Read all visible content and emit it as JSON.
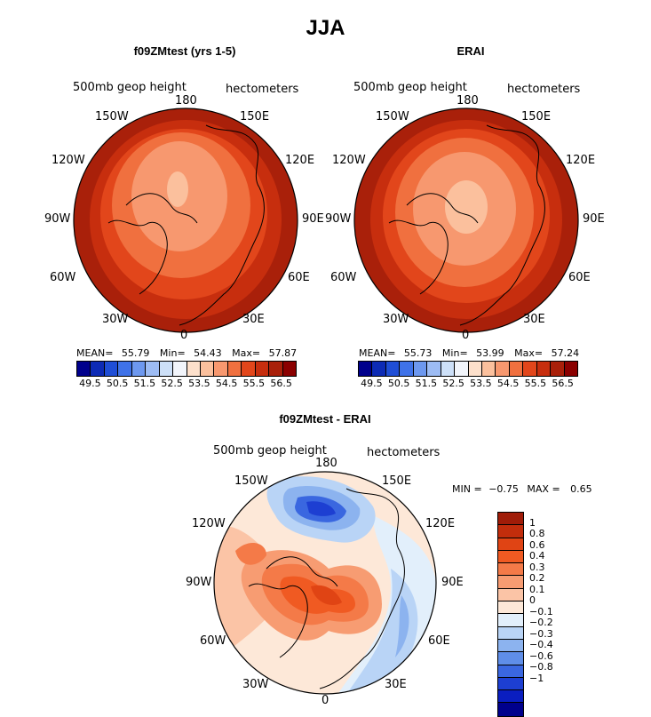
{
  "title": "JJA",
  "panels": [
    {
      "title": "f09ZMtest (yrs 1-5)",
      "variable": "500mb geop height",
      "units": "hectometers",
      "stats": {
        "mean_label": "MEAN=",
        "mean": "55.79",
        "min_label": "Min=",
        "min": "54.43",
        "max_label": "Max=",
        "max": "57.87"
      },
      "lon_labels": {
        "top": "180",
        "tl1": "150W",
        "tr1": "150E",
        "tl2": "120W",
        "tr2": "120E",
        "l": "90W",
        "r": "90E",
        "bl2": "60W",
        "br2": "60E",
        "bl1": "30W",
        "br1": "30E",
        "bottom": "0"
      }
    },
    {
      "title": "ERAI",
      "variable": "500mb geop height",
      "units": "hectometers",
      "stats": {
        "mean_label": "MEAN=",
        "mean": "55.73",
        "min_label": "Min=",
        "min": "53.99",
        "max_label": "Max=",
        "max": "57.24"
      },
      "lon_labels": {
        "top": "180",
        "tl1": "150W",
        "tr1": "150E",
        "tl2": "120W",
        "tr2": "120E",
        "l": "90W",
        "r": "90E",
        "bl2": "60W",
        "br2": "60E",
        "bl1": "30W",
        "br1": "30E",
        "bottom": "0"
      }
    },
    {
      "title": "f09ZMtest - ERAI",
      "variable": "500mb geop height",
      "units": "hectometers",
      "stats": {
        "min_label": "MIN =",
        "min": "−0.75",
        "max_label": "MAX =",
        "max": "0.65"
      },
      "lon_labels": {
        "top": "180",
        "tl1": "150W",
        "tr1": "150E",
        "tl2": "120W",
        "tr2": "120E",
        "l": "90W",
        "r": "90E",
        "bl2": "60W",
        "br2": "60E",
        "bl1": "30W",
        "br1": "30E",
        "bottom": "0"
      }
    }
  ],
  "colorbar_abs": {
    "ticks": [
      "49.5",
      "50.5",
      "51.5",
      "52.5",
      "53.5",
      "54.5",
      "55.5",
      "56.5"
    ],
    "colors": [
      "#00008c",
      "#0d2bb5",
      "#1f4ed6",
      "#3f72e8",
      "#6d98ef",
      "#9dbcf4",
      "#cde0f8",
      "#f2f5fb",
      "#fde0cb",
      "#fbc09d",
      "#f7986f",
      "#f0703f",
      "#e2461b",
      "#c72e0e",
      "#a9200a",
      "#8b0000"
    ]
  },
  "colorbar_diff": {
    "labels": [
      "1",
      "0.8",
      "0.6",
      "0.4",
      "0.3",
      "0.2",
      "0.1",
      "0",
      "−0.1",
      "−0.2",
      "−0.3",
      "−0.4",
      "−0.6",
      "−0.8",
      "−1"
    ],
    "colors": [
      "#a01c08",
      "#c22d0c",
      "#e04414",
      "#f05a22",
      "#f47a48",
      "#f79c72",
      "#fbc4a6",
      "#fde8d8",
      "#e2effb",
      "#b9d4f6",
      "#8cb3ef",
      "#5f8ee8",
      "#3a67e0",
      "#1d3fd2",
      "#0a1ec0",
      "#00008c"
    ]
  }
}
